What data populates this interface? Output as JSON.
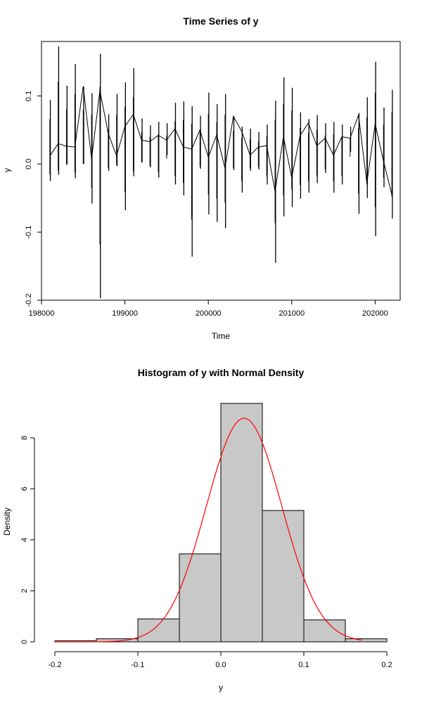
{
  "chart_data": [
    {
      "type": "line",
      "title": "Time Series of y",
      "xlabel": "Time",
      "ylabel": "y",
      "xlim": [
        198000,
        202300
      ],
      "ylim": [
        -0.2,
        0.18
      ],
      "x_ticks": [
        {
          "value": 198000,
          "label": "198000"
        },
        {
          "value": 199000,
          "label": "199000"
        },
        {
          "value": 200000,
          "label": "200000"
        },
        {
          "value": 201000,
          "label": "201000"
        },
        {
          "value": 202000,
          "label": "202000"
        }
      ],
      "y_ticks": [
        {
          "value": -0.2,
          "label": "-0.2"
        },
        {
          "value": -0.1,
          "label": "-0.1"
        },
        {
          "value": 0.0,
          "label": "0.0"
        },
        {
          "value": 0.1,
          "label": "0.1"
        }
      ],
      "series_color": "#000000",
      "groups": [
        {
          "year": 1981,
          "min": -0.025,
          "max": 0.094
        },
        {
          "year": 1982,
          "min": -0.016,
          "max": 0.173
        },
        {
          "year": 1983,
          "min": -0.001,
          "max": 0.115
        },
        {
          "year": 1984,
          "min": -0.021,
          "max": 0.147
        },
        {
          "year": 1985,
          "min": 0.0,
          "max": 0.114
        },
        {
          "year": 1986,
          "min": -0.058,
          "max": 0.104
        },
        {
          "year": 1987,
          "min": -0.197,
          "max": 0.162
        },
        {
          "year": 1988,
          "min": -0.01,
          "max": 0.073
        },
        {
          "year": 1989,
          "min": -0.003,
          "max": 0.103
        },
        {
          "year": 1990,
          "min": -0.068,
          "max": 0.12
        },
        {
          "year": 1991,
          "min": -0.018,
          "max": 0.141
        },
        {
          "year": 1992,
          "min": 0.003,
          "max": 0.067
        },
        {
          "year": 1993,
          "min": -0.005,
          "max": 0.057
        },
        {
          "year": 1994,
          "min": -0.02,
          "max": 0.062
        },
        {
          "year": 1995,
          "min": 0.013,
          "max": 0.06
        },
        {
          "year": 1996,
          "min": -0.03,
          "max": 0.09
        },
        {
          "year": 1997,
          "min": -0.046,
          "max": 0.092
        },
        {
          "year": 1998,
          "min": -0.136,
          "max": 0.085
        },
        {
          "year": 1999,
          "min": -0.007,
          "max": 0.071
        },
        {
          "year": 2000,
          "min": -0.074,
          "max": 0.105
        },
        {
          "year": 2001,
          "min": -0.085,
          "max": 0.088
        },
        {
          "year": 2002,
          "min": -0.094,
          "max": 0.103
        },
        {
          "year": 2003,
          "min": -0.009,
          "max": 0.07
        },
        {
          "year": 2004,
          "min": -0.042,
          "max": 0.055
        },
        {
          "year": 2005,
          "min": -0.01,
          "max": 0.052
        },
        {
          "year": 2006,
          "min": -0.008,
          "max": 0.047
        },
        {
          "year": 2007,
          "min": -0.03,
          "max": 0.058
        },
        {
          "year": 2008,
          "min": -0.145,
          "max": 0.093
        },
        {
          "year": 2009,
          "min": -0.077,
          "max": 0.127
        },
        {
          "year": 2010,
          "min": -0.063,
          "max": 0.112
        },
        {
          "year": 2011,
          "min": -0.051,
          "max": 0.076
        },
        {
          "year": 2012,
          "min": -0.042,
          "max": 0.066
        },
        {
          "year": 2013,
          "min": -0.028,
          "max": 0.072
        },
        {
          "year": 2014,
          "min": -0.013,
          "max": 0.06
        },
        {
          "year": 2015,
          "min": -0.042,
          "max": 0.062
        },
        {
          "year": 2016,
          "min": -0.03,
          "max": 0.058
        },
        {
          "year": 2017,
          "min": 0.018,
          "max": 0.055
        },
        {
          "year": 2018,
          "min": -0.073,
          "max": 0.075
        },
        {
          "year": 2019,
          "min": -0.05,
          "max": 0.098
        },
        {
          "year": 2020,
          "min": -0.106,
          "max": 0.15
        },
        {
          "year": 2021,
          "min": -0.034,
          "max": 0.083
        },
        {
          "year": 2022,
          "min": -0.08,
          "max": 0.109
        }
      ],
      "connector": [
        {
          "x": 198100,
          "y": 0.012
        },
        {
          "x": 198200,
          "y": 0.03
        },
        {
          "x": 198300,
          "y": 0.026
        },
        {
          "x": 198400,
          "y": 0.025
        },
        {
          "x": 198500,
          "y": 0.114
        },
        {
          "x": 198600,
          "y": 0.007
        },
        {
          "x": 198700,
          "y": 0.108
        },
        {
          "x": 198800,
          "y": 0.045
        },
        {
          "x": 198900,
          "y": 0.012
        },
        {
          "x": 199000,
          "y": 0.055
        },
        {
          "x": 199100,
          "y": 0.073
        },
        {
          "x": 199200,
          "y": 0.035
        },
        {
          "x": 199300,
          "y": 0.033
        },
        {
          "x": 199400,
          "y": 0.042
        },
        {
          "x": 199500,
          "y": 0.035
        },
        {
          "x": 199600,
          "y": 0.052
        },
        {
          "x": 199700,
          "y": 0.025
        },
        {
          "x": 199800,
          "y": 0.022
        },
        {
          "x": 199900,
          "y": 0.05
        },
        {
          "x": 200000,
          "y": 0.01
        },
        {
          "x": 200100,
          "y": 0.043
        },
        {
          "x": 200200,
          "y": -0.006
        },
        {
          "x": 200300,
          "y": 0.07
        },
        {
          "x": 200400,
          "y": 0.048
        },
        {
          "x": 200500,
          "y": 0.013
        },
        {
          "x": 200600,
          "y": 0.025
        },
        {
          "x": 200700,
          "y": 0.027
        },
        {
          "x": 200800,
          "y": -0.04
        },
        {
          "x": 200900,
          "y": 0.04
        },
        {
          "x": 201000,
          "y": -0.02
        },
        {
          "x": 201100,
          "y": 0.042
        },
        {
          "x": 201200,
          "y": 0.06
        },
        {
          "x": 201300,
          "y": 0.027
        },
        {
          "x": 201400,
          "y": 0.038
        },
        {
          "x": 201500,
          "y": 0.013
        },
        {
          "x": 201600,
          "y": 0.04
        },
        {
          "x": 201700,
          "y": 0.038
        },
        {
          "x": 201800,
          "y": 0.072
        },
        {
          "x": 201900,
          "y": -0.028
        },
        {
          "x": 202000,
          "y": 0.059
        },
        {
          "x": 202100,
          "y": 0.004
        },
        {
          "x": 202200,
          "y": -0.045
        }
      ]
    },
    {
      "type": "bar",
      "title": "Histogram of y with Normal Density",
      "xlabel": "y",
      "ylabel": "Density",
      "xlim": [
        -0.2,
        0.2
      ],
      "ylim": [
        0,
        9.4
      ],
      "x_ticks": [
        {
          "value": -0.2,
          "label": "-0.2"
        },
        {
          "value": -0.1,
          "label": "-0.1"
        },
        {
          "value": 0.0,
          "label": "0.0"
        },
        {
          "value": 0.1,
          "label": "0.1"
        },
        {
          "value": 0.2,
          "label": "0.2"
        }
      ],
      "y_ticks": [
        {
          "value": 0,
          "label": "0"
        },
        {
          "value": 2,
          "label": "2"
        },
        {
          "value": 4,
          "label": "4"
        },
        {
          "value": 6,
          "label": "6"
        },
        {
          "value": 8,
          "label": "8"
        }
      ],
      "bin_edges": [
        -0.2,
        -0.15,
        -0.1,
        -0.05,
        0.0,
        0.05,
        0.1,
        0.15,
        0.2
      ],
      "values": [
        0.04,
        0.12,
        0.9,
        3.45,
        9.35,
        5.15,
        0.86,
        0.12
      ],
      "bar_fill": "#c8c8c8",
      "bar_stroke": "#000000",
      "density_curve": {
        "mean": 0.028,
        "sd": 0.0455,
        "from": -0.2,
        "to": 0.17,
        "color": "#ff0000"
      }
    }
  ]
}
